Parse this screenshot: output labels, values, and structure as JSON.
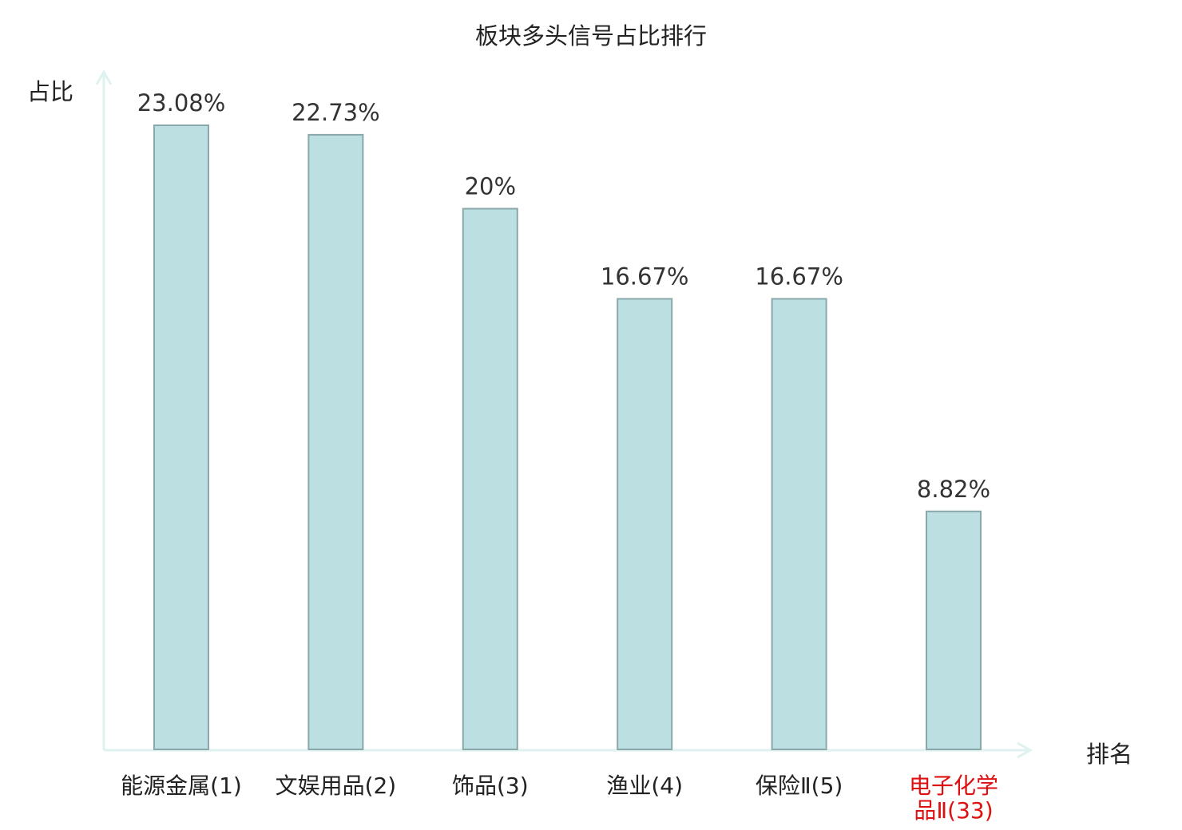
{
  "chart_data": {
    "type": "bar",
    "title": "板块多头信号占比排行",
    "ylabel": "占比",
    "xlabel": "排名",
    "ylim": [
      0,
      25
    ],
    "grid": false,
    "categories": [
      "能源金属(1)",
      "文娱用品(2)",
      "饰品(3)",
      "渔业(4)",
      "保险Ⅱ(5)",
      "电子化学品Ⅱ(33)"
    ],
    "category_lines": [
      [
        "能源金属(1)"
      ],
      [
        "文娱用品(2)"
      ],
      [
        "饰品(3)"
      ],
      [
        "渔业(4)"
      ],
      [
        "保险Ⅱ(5)"
      ],
      [
        "电子化学",
        "品Ⅱ(33)"
      ]
    ],
    "values": [
      23.08,
      22.73,
      20,
      16.67,
      16.67,
      8.82
    ],
    "value_labels": [
      "23.08%",
      "22.73%",
      "20%",
      "16.67%",
      "16.67%",
      "8.82%"
    ],
    "highlight_index": 5
  },
  "colors": {
    "bar_fill": "#bce0e2",
    "bar_stroke": "#8aa8ab",
    "axis": "#dff2ef",
    "text": "#222222",
    "value_text": "#333333",
    "highlight_text": "#dd1111"
  }
}
